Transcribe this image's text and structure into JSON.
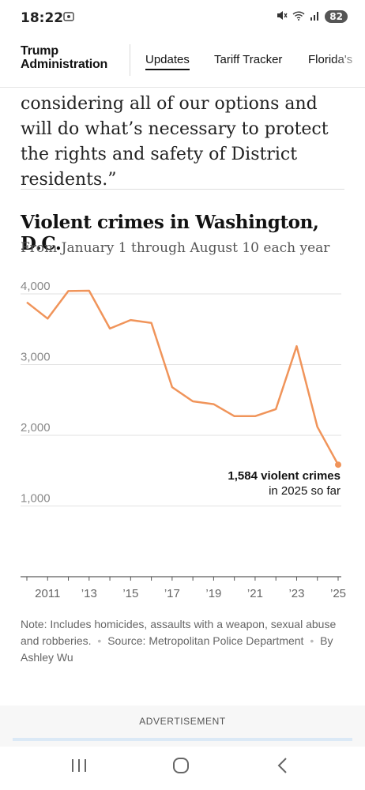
{
  "status": {
    "time": "18:22",
    "battery": "82"
  },
  "nav": {
    "brand_line1": "Trump",
    "brand_line2": "Administration",
    "links": [
      "Updates",
      "Tariff Tracker",
      "Florida's"
    ]
  },
  "quote": "considering all of our options and will do what’s necessary to protect the rights and safety of District residents.”",
  "chart_title": "Violent crimes in Washington, D.C.",
  "chart_subtitle": "From January 1 through August 10 each year",
  "chart_data": {
    "type": "line",
    "x": [
      2010,
      2011,
      2012,
      2013,
      2014,
      2015,
      2016,
      2017,
      2018,
      2019,
      2020,
      2021,
      2022,
      2023,
      2024,
      2025
    ],
    "series": [
      {
        "values": [
          3880,
          3650,
          4040,
          4045,
          3510,
          3630,
          3590,
          2680,
          2480,
          2440,
          2270,
          2270,
          2370,
          3260,
          2120,
          1584
        ]
      }
    ],
    "ylim": [
      0,
      4000
    ],
    "y_ticks": [
      "1,000",
      "2,000",
      "3,000",
      "4,000"
    ],
    "y_tick_values": [
      1000,
      2000,
      3000,
      4000
    ],
    "x_tick_labels": [
      "2011",
      "’13",
      "’15",
      "’17",
      "’19",
      "’21",
      "’23",
      "’25"
    ],
    "x_tick_values": [
      2011,
      2013,
      2015,
      2017,
      2019,
      2021,
      2023,
      2025
    ],
    "annotation": {
      "bold": "1,584 violent crimes",
      "normal": "in 2025 so far"
    },
    "color": "#f0945a",
    "grid": true
  },
  "note": {
    "text": "Note: Includes homicides, assaults with a weapon, sexual abuse and robberies.",
    "source": "Source: Metropolitan Police Department",
    "byline": "By Ashley Wu"
  },
  "ad_label": "ADVERTISEMENT",
  "icons": [
    "cast-icon",
    "mute-icon",
    "wifi-icon",
    "signal-icon",
    "battery-icon",
    "recents-icon",
    "home-icon",
    "back-icon"
  ]
}
